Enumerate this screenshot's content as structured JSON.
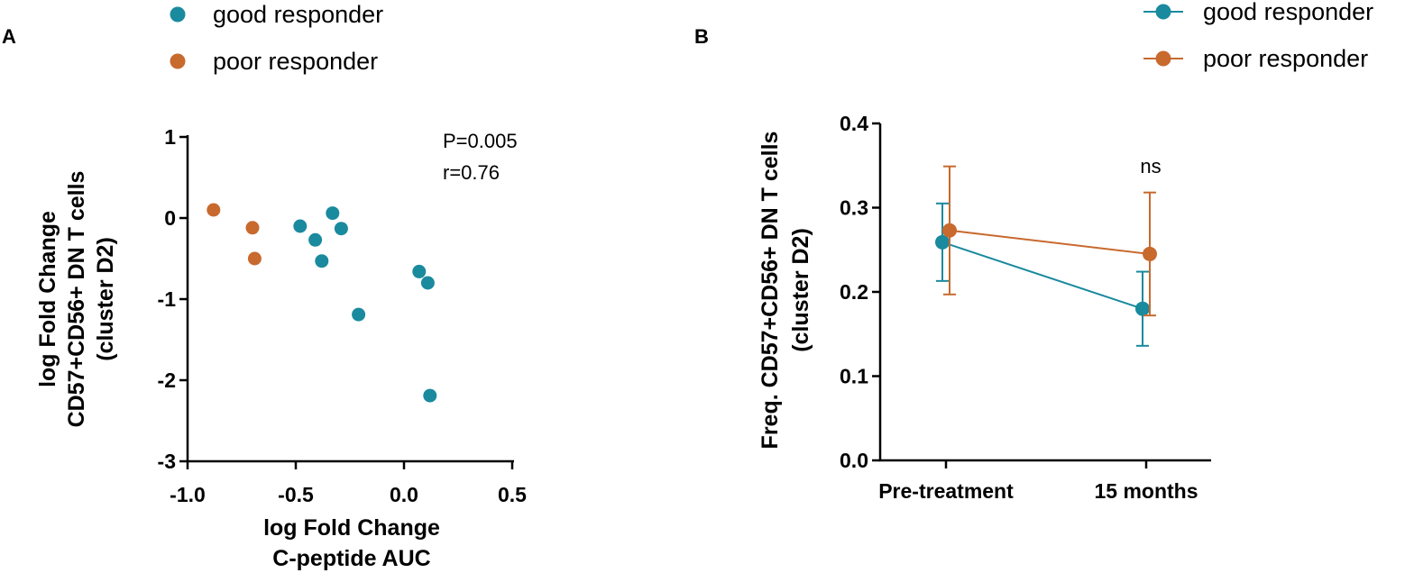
{
  "panels": {
    "a": {
      "letter": "A"
    },
    "b": {
      "letter": "B"
    }
  },
  "chart_data": [
    {
      "type": "scatter",
      "legend": [
        "good responder",
        "poor responder"
      ],
      "legend_position": "top",
      "colors": {
        "good responder": "#1a8a9e",
        "poor responder": "#c8692e"
      },
      "xlabel": [
        "log Fold Change",
        "C-peptide AUC"
      ],
      "ylabel": [
        "log Fold Change",
        "CD57+CD56+ DN T cells",
        "(cluster D2)"
      ],
      "xlim": [
        -1.0,
        0.5
      ],
      "ylim": [
        -3,
        1
      ],
      "xticks": [
        -1.0,
        -0.5,
        0.0,
        0.5
      ],
      "xtick_labels": [
        "-1.0",
        "-0.5",
        "0.0",
        "0.5"
      ],
      "yticks": [
        1,
        0,
        -1,
        -2,
        -3
      ],
      "ytick_labels": [
        "1",
        "0",
        "-1",
        "-2",
        "-3"
      ],
      "annotations": [
        "P=0.005",
        "r=0.76"
      ],
      "series": [
        {
          "name": "good responder",
          "points": [
            [
              -0.48,
              -0.1
            ],
            [
              -0.41,
              -0.27
            ],
            [
              -0.38,
              -0.53
            ],
            [
              -0.33,
              0.06
            ],
            [
              -0.29,
              -0.13
            ],
            [
              -0.21,
              -1.19
            ],
            [
              0.07,
              -0.66
            ],
            [
              0.11,
              -0.8
            ],
            [
              0.12,
              -2.19
            ]
          ]
        },
        {
          "name": "poor responder",
          "points": [
            [
              -0.88,
              0.1
            ],
            [
              -0.7,
              -0.12
            ],
            [
              -0.69,
              -0.5
            ]
          ]
        }
      ]
    },
    {
      "type": "line",
      "legend": [
        "good responder",
        "poor responder"
      ],
      "legend_position": "top-right",
      "colors": {
        "good responder": "#1a8a9e",
        "poor responder": "#c8692e"
      },
      "categories": [
        "Pre-treatment",
        "15 months"
      ],
      "ylabel": [
        "Freq. CD57+CD56+ DN T cells",
        "(cluster D2)"
      ],
      "ylim": [
        0.0,
        0.4
      ],
      "yticks": [
        0.0,
        0.1,
        0.2,
        0.3,
        0.4
      ],
      "ytick_labels": [
        "0.0",
        "0.1",
        "0.2",
        "0.3",
        "0.4"
      ],
      "annotations": [
        "ns"
      ],
      "series": [
        {
          "name": "good responder",
          "values": [
            0.259,
            0.18
          ],
          "errors": [
            0.046,
            0.044
          ]
        },
        {
          "name": "poor responder",
          "values": [
            0.273,
            0.245
          ],
          "errors": [
            0.076,
            0.073
          ]
        }
      ]
    }
  ]
}
